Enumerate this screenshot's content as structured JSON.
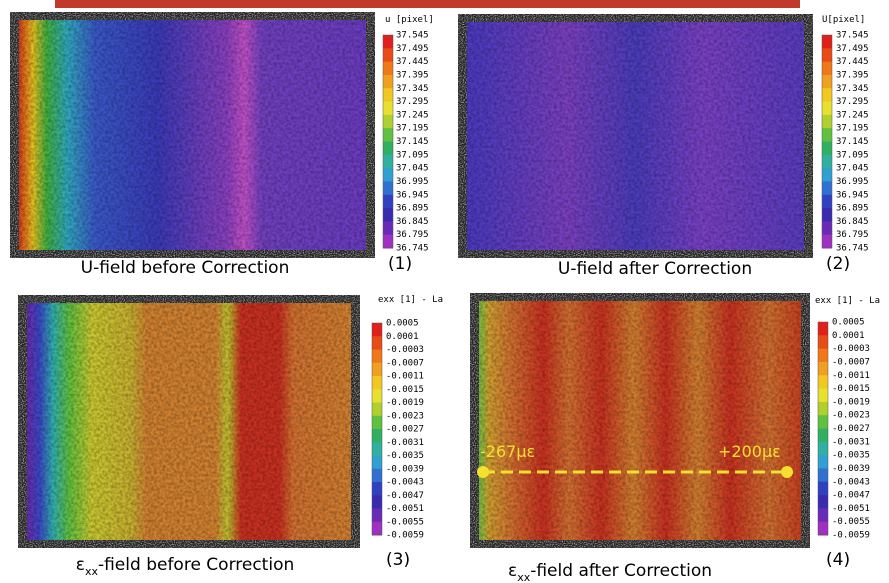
{
  "panels": [
    {
      "colorbar_title": "u [pixel]",
      "ticks": [
        "37.545",
        "37.495",
        "37.445",
        "37.395",
        "37.345",
        "37.295",
        "37.245",
        "37.195",
        "37.145",
        "37.095",
        "37.045",
        "36.995",
        "36.945",
        "36.895",
        "36.845",
        "36.795",
        "36.745"
      ],
      "caption": "U-field before Correction",
      "number": "(1)"
    },
    {
      "colorbar_title": "U[pixel]",
      "ticks": [
        "37.545",
        "37.495",
        "37.445",
        "37.395",
        "37.345",
        "37.295",
        "37.245",
        "37.195",
        "37.145",
        "37.095",
        "37.045",
        "36.995",
        "36.945",
        "36.895",
        "36.845",
        "36.795",
        "36.745"
      ],
      "caption": "U-field after Correction",
      "number": "(2)"
    },
    {
      "colorbar_title": "exx [1] - La",
      "ticks": [
        "0.0005",
        "0.0001",
        "-0.0003",
        "-0.0007",
        "-0.0011",
        "-0.0015",
        "-0.0019",
        "-0.0023",
        "-0.0027",
        "-0.0031",
        "-0.0035",
        "-0.0039",
        "-0.0043",
        "-0.0047",
        "-0.0051",
        "-0.0055",
        "-0.0059"
      ],
      "caption_symbol": "ε",
      "caption_subscript": "xx",
      "caption": "-field before Correction",
      "number": "(3)"
    },
    {
      "colorbar_title": "exx [1] - La",
      "ticks": [
        "0.0005",
        "0.0001",
        "-0.0003",
        "-0.0007",
        "-0.0011",
        "-0.0015",
        "-0.0019",
        "-0.0023",
        "-0.0027",
        "-0.0031",
        "-0.0035",
        "-0.0039",
        "-0.0043",
        "-0.0047",
        "-0.0051",
        "-0.0055",
        "-0.0059"
      ],
      "caption_symbol": "ε",
      "caption_subscript": "xx",
      "caption": "-field after Correction",
      "number": "(4)"
    }
  ],
  "annotations": {
    "left": "-267με",
    "right": "+200με"
  }
}
